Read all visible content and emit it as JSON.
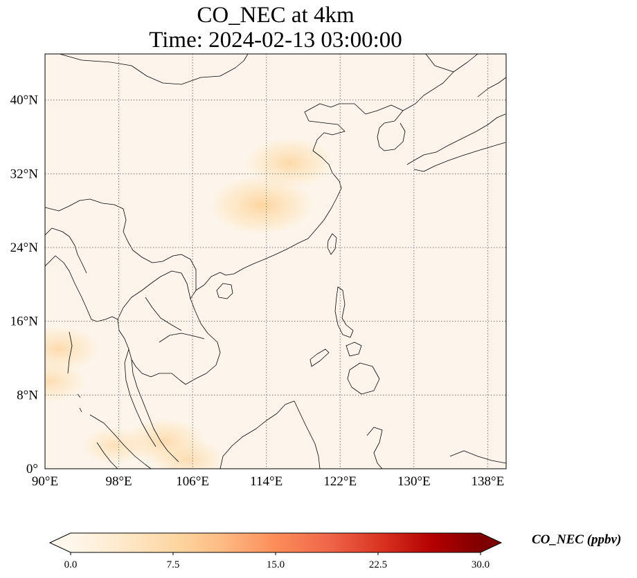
{
  "title": {
    "line1": "CO_NEC at 4km",
    "line2": "Time: 2024-02-13 03:00:00"
  },
  "map": {
    "extent": {
      "lon": [
        90,
        140
      ],
      "lat": [
        0,
        45
      ]
    },
    "lon_ticks": [
      {
        "value": 90,
        "label": "90°E"
      },
      {
        "value": 98,
        "label": "98°E"
      },
      {
        "value": 106,
        "label": "106°E"
      },
      {
        "value": 114,
        "label": "114°E"
      },
      {
        "value": 122,
        "label": "122°E"
      },
      {
        "value": 130,
        "label": "130°E"
      },
      {
        "value": 138,
        "label": "138°E"
      }
    ],
    "lat_ticks": [
      {
        "value": 0,
        "label": "0°"
      },
      {
        "value": 8,
        "label": "8°N"
      },
      {
        "value": 16,
        "label": "16°N"
      },
      {
        "value": 24,
        "label": "24°N"
      },
      {
        "value": 32,
        "label": "32°N"
      },
      {
        "value": 40,
        "label": "40°N"
      }
    ],
    "gridlines": true,
    "background_color": "#fdf5eb",
    "hotspots": [
      {
        "lon": 113.5,
        "lat": 28.6,
        "value": 9
      },
      {
        "lon": 116.5,
        "lat": 33.2,
        "value": 7
      },
      {
        "lon": 91.5,
        "lat": 13.0,
        "value": 6
      },
      {
        "lon": 90.5,
        "lat": 9.5,
        "value": 5
      },
      {
        "lon": 103.0,
        "lat": 3.0,
        "value": 6
      },
      {
        "lon": 97.5,
        "lat": 2.5,
        "value": 4
      },
      {
        "lon": 105.5,
        "lat": 1.0,
        "value": 5
      }
    ]
  },
  "colorbar": {
    "label": "CO_NEC (ppbv)",
    "min": 0,
    "max": 30,
    "extend": "both",
    "colormap": "OrRd",
    "tick_labels": [
      "0.0",
      "7.5",
      "15.0",
      "22.5",
      "30.0"
    ],
    "tick_values": [
      0,
      7.5,
      15,
      22.5,
      30
    ],
    "stops": [
      {
        "value": 0,
        "color": "#fff7ec"
      },
      {
        "value": 4,
        "color": "#fee8c8"
      },
      {
        "value": 8,
        "color": "#fdd49e"
      },
      {
        "value": 11,
        "color": "#fdbb84"
      },
      {
        "value": 15,
        "color": "#fc8d59"
      },
      {
        "value": 19,
        "color": "#ef6548"
      },
      {
        "value": 23,
        "color": "#d7301f"
      },
      {
        "value": 26.5,
        "color": "#b30000"
      },
      {
        "value": 30,
        "color": "#7f0000"
      }
    ]
  }
}
